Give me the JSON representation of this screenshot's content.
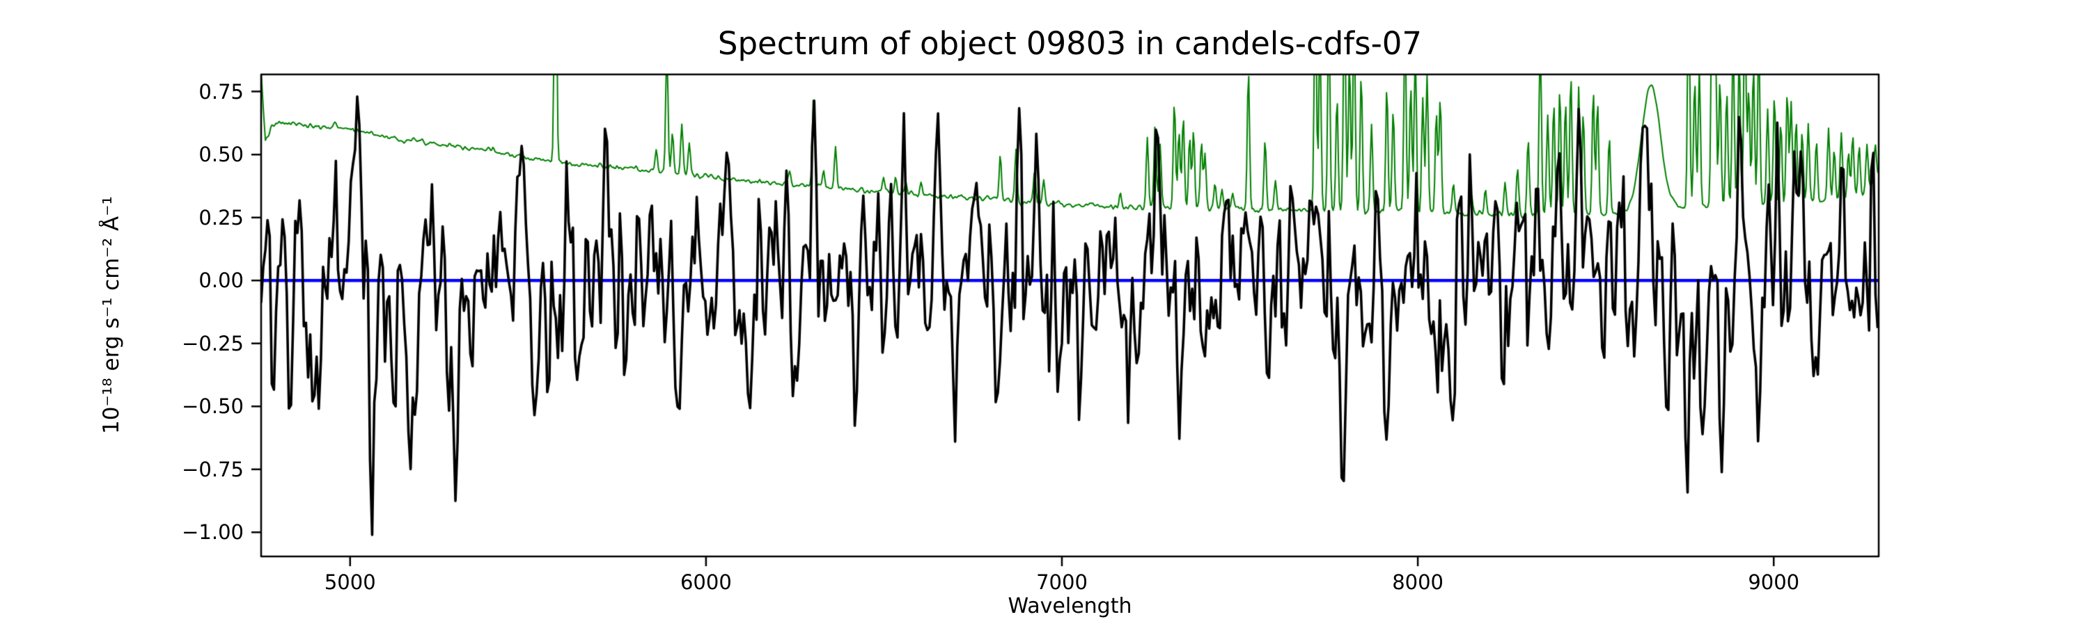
{
  "figure": {
    "background": "#ffffff"
  },
  "chart_data": {
    "type": "line",
    "title": "Spectrum of object 09803 in candels-cdfs-07",
    "xlabel": "Wavelength",
    "ylabel": "10⁻¹⁸ erg s⁻¹ cm⁻² Å⁻¹",
    "xlim": [
      4750,
      9295
    ],
    "ylim": [
      -1.096,
      0.818
    ],
    "xticks": [
      5000,
      6000,
      7000,
      8000,
      9000
    ],
    "xtick_labels": [
      "5000",
      "6000",
      "7000",
      "8000",
      "9000"
    ],
    "yticks": [
      0.75,
      0.5,
      0.25,
      0,
      -0.25,
      -0.5,
      -0.75,
      -1
    ],
    "ytick_labels": [
      "0.75",
      "0.50",
      "0.25",
      "0.00",
      "−0.25",
      "−0.50",
      "−0.75",
      "−1.00"
    ],
    "grid": false,
    "legend": "none",
    "axis_color": "#000000",
    "spine_width": 2.5,
    "tick_length": 14,
    "series": [
      {
        "name": "zero-line",
        "role": "reference line at zero flux",
        "color": "#0000ff",
        "linewidth": 4.5,
        "y": 0
      },
      {
        "name": "sky-noise",
        "role": "noise / sky spectrum",
        "color": "#008000",
        "linewidth": 2,
        "sample_step": 3,
        "wiggle_seed": 7,
        "wiggle_sigma": 0.008,
        "sky_line_width": 3.2,
        "baseline_nodes": [
          [
            4750,
            0.82
          ],
          [
            4762,
            0.555
          ],
          [
            4778,
            0.605
          ],
          [
            4800,
            0.625
          ],
          [
            4860,
            0.62
          ],
          [
            4900,
            0.605
          ],
          [
            4960,
            0.615
          ],
          [
            5000,
            0.6
          ],
          [
            5060,
            0.585
          ],
          [
            5120,
            0.565
          ],
          [
            5180,
            0.555
          ],
          [
            5240,
            0.545
          ],
          [
            5300,
            0.535
          ],
          [
            5380,
            0.52
          ],
          [
            5460,
            0.5
          ],
          [
            5540,
            0.478
          ],
          [
            5600,
            0.465
          ],
          [
            5660,
            0.458
          ],
          [
            5720,
            0.452
          ],
          [
            5780,
            0.443
          ],
          [
            5840,
            0.435
          ],
          [
            5900,
            0.428
          ],
          [
            5960,
            0.418
          ],
          [
            6020,
            0.41
          ],
          [
            6080,
            0.4
          ],
          [
            6140,
            0.395
          ],
          [
            6200,
            0.388
          ],
          [
            6260,
            0.38
          ],
          [
            6320,
            0.372
          ],
          [
            6380,
            0.365
          ],
          [
            6440,
            0.358
          ],
          [
            6500,
            0.352
          ],
          [
            6560,
            0.345
          ],
          [
            6620,
            0.338
          ],
          [
            6680,
            0.332
          ],
          [
            6740,
            0.328
          ],
          [
            6800,
            0.323
          ],
          [
            6860,
            0.318
          ],
          [
            6920,
            0.312
          ],
          [
            6980,
            0.305
          ],
          [
            7040,
            0.3
          ],
          [
            7100,
            0.296
          ],
          [
            7160,
            0.292
          ],
          [
            7220,
            0.29
          ],
          [
            7300,
            0.288
          ],
          [
            7400,
            0.285
          ],
          [
            7500,
            0.282
          ],
          [
            7600,
            0.28
          ],
          [
            7700,
            0.278
          ],
          [
            7800,
            0.276
          ],
          [
            7900,
            0.274
          ],
          [
            8000,
            0.272
          ],
          [
            8100,
            0.268
          ],
          [
            8200,
            0.265
          ],
          [
            8300,
            0.263
          ],
          [
            8400,
            0.262
          ],
          [
            8500,
            0.263
          ],
          [
            8580,
            0.268
          ],
          [
            8700,
            0.285
          ],
          [
            8800,
            0.295
          ],
          [
            8900,
            0.3
          ],
          [
            9000,
            0.305
          ],
          [
            9100,
            0.312
          ],
          [
            9150,
            0.318
          ],
          [
            9200,
            0.325
          ],
          [
            9250,
            0.34
          ],
          [
            9280,
            0.38
          ],
          [
            9295,
            0.42
          ]
        ],
        "sky_lines": [
          [
            5577,
            1.2
          ],
          [
            5860,
            0.08
          ],
          [
            5890,
            0.5
          ],
          [
            5906,
            0.16
          ],
          [
            5932,
            0.2
          ],
          [
            5953,
            0.13
          ],
          [
            6235,
            0.05
          ],
          [
            6302,
            0.36
          ],
          [
            6330,
            0.06
          ],
          [
            6364,
            0.16
          ],
          [
            6499,
            0.05
          ],
          [
            6533,
            0.06
          ],
          [
            6562,
            0.05
          ],
          [
            6604,
            0.04
          ],
          [
            6827,
            0.17
          ],
          [
            6871,
            0.21
          ],
          [
            6923,
            0.12
          ],
          [
            6949,
            0.09
          ],
          [
            7164,
            0.05
          ],
          [
            7240,
            0.28
          ],
          [
            7262,
            0.33
          ],
          [
            7276,
            0.25
          ],
          [
            7316,
            0.42
          ],
          [
            7329,
            0.3
          ],
          [
            7341,
            0.36
          ],
          [
            7359,
            0.28
          ],
          [
            7370,
            0.32
          ],
          [
            7392,
            0.26
          ],
          [
            7402,
            0.22
          ],
          [
            7430,
            0.1
          ],
          [
            7450,
            0.08
          ],
          [
            7480,
            0.06
          ],
          [
            7524,
            0.55
          ],
          [
            7571,
            0.28
          ],
          [
            7600,
            0.12
          ],
          [
            7712,
            0.95
          ],
          [
            7725,
            0.7
          ],
          [
            7750,
            0.8
          ],
          [
            7773,
            0.45
          ],
          [
            7794,
            0.9
          ],
          [
            7808,
            0.6
          ],
          [
            7821,
            0.8
          ],
          [
            7841,
            0.55
          ],
          [
            7870,
            0.35
          ],
          [
            7913,
            0.5
          ],
          [
            7931,
            0.4
          ],
          [
            7964,
            0.75
          ],
          [
            7980,
            0.5
          ],
          [
            7993,
            0.65
          ],
          [
            8014,
            0.45
          ],
          [
            8026,
            0.55
          ],
          [
            8052,
            0.4
          ],
          [
            8063,
            0.45
          ],
          [
            8100,
            0.12
          ],
          [
            8150,
            0.08
          ],
          [
            8190,
            0.1
          ],
          [
            8245,
            0.12
          ],
          [
            8280,
            0.18
          ],
          [
            8310,
            0.3
          ],
          [
            8344,
            0.7
          ],
          [
            8365,
            0.4
          ],
          [
            8382,
            0.45
          ],
          [
            8399,
            0.5
          ],
          [
            8415,
            0.45
          ],
          [
            8430,
            0.55
          ],
          [
            8452,
            0.5
          ],
          [
            8465,
            0.4
          ],
          [
            8493,
            0.5
          ],
          [
            8505,
            0.45
          ],
          [
            8538,
            0.3
          ],
          [
            8761,
            0.9
          ],
          [
            8778,
            0.5
          ],
          [
            8791,
            0.55
          ],
          [
            8827,
            0.9
          ],
          [
            8836,
            0.7
          ],
          [
            8849,
            0.5
          ],
          [
            8868,
            0.45
          ],
          [
            8886,
            0.65
          ],
          [
            8903,
            0.6
          ],
          [
            8919,
            0.85
          ],
          [
            8930,
            0.45
          ],
          [
            8943,
            0.55
          ],
          [
            8958,
            0.65
          ],
          [
            8983,
            0.38
          ],
          [
            9002,
            0.42
          ],
          [
            9020,
            0.32
          ],
          [
            9038,
            0.45
          ],
          [
            9049,
            0.4
          ],
          [
            9063,
            0.32
          ],
          [
            9080,
            0.28
          ],
          [
            9097,
            0.32
          ],
          [
            9120,
            0.22
          ],
          [
            9154,
            0.28
          ],
          [
            9170,
            0.2
          ],
          [
            9190,
            0.26
          ],
          [
            9210,
            0.18
          ],
          [
            9222,
            0.24
          ],
          [
            9240,
            0.2
          ],
          [
            9262,
            0.18
          ],
          [
            9285,
            0.15
          ]
        ],
        "broad_bumps": [
          [
            8655,
            0.5,
            26
          ]
        ]
      },
      {
        "name": "flux",
        "role": "object spectrum (noisy)",
        "color": "#000000",
        "linewidth": 3.6,
        "sample_step": 6,
        "noise_seed": 20,
        "feature_width": 7,
        "clamp": [
          -1.01,
          0.73
        ],
        "noise_sigma_nodes": [
          [
            4750,
            0.2
          ],
          [
            5400,
            0.19
          ],
          [
            5800,
            0.175
          ],
          [
            6400,
            0.165
          ],
          [
            7000,
            0.155
          ],
          [
            7500,
            0.165
          ],
          [
            7700,
            0.185
          ],
          [
            8300,
            0.19
          ],
          [
            8800,
            0.2
          ],
          [
            9295,
            0.2
          ]
        ],
        "features": [
          [
            4787,
            -0.42
          ],
          [
            4800,
            0.34
          ],
          [
            4835,
            -0.38
          ],
          [
            4862,
            0.44
          ],
          [
            4875,
            -0.55
          ],
          [
            4910,
            -0.4
          ],
          [
            4960,
            0.5
          ],
          [
            5020,
            0.56
          ],
          [
            5065,
            -0.78
          ],
          [
            5120,
            -0.45
          ],
          [
            5170,
            -0.72
          ],
          [
            5230,
            0.35
          ],
          [
            5295,
            -0.8
          ],
          [
            5340,
            -0.6
          ],
          [
            5420,
            0.3
          ],
          [
            5480,
            0.55
          ],
          [
            5515,
            -0.48
          ],
          [
            5560,
            -0.42
          ],
          [
            5640,
            -0.35
          ],
          [
            5720,
            0.63
          ],
          [
            5775,
            -0.4
          ],
          [
            5850,
            0.3
          ],
          [
            5920,
            -0.35
          ],
          [
            5980,
            0.32
          ],
          [
            6060,
            0.34
          ],
          [
            6120,
            -0.38
          ],
          [
            6190,
            0.3
          ],
          [
            6245,
            -0.52
          ],
          [
            6300,
            0.42
          ],
          [
            6360,
            -0.3
          ],
          [
            6420,
            -0.45
          ],
          [
            6480,
            0.3
          ],
          [
            6560,
            0.35
          ],
          [
            6650,
            0.47
          ],
          [
            6700,
            -0.55
          ],
          [
            6760,
            0.3
          ],
          [
            6820,
            -0.3
          ],
          [
            6880,
            0.5
          ],
          [
            6930,
            0.4
          ],
          [
            6990,
            -0.35
          ],
          [
            7050,
            -0.48
          ],
          [
            7120,
            0.28
          ],
          [
            7190,
            -0.3
          ],
          [
            7270,
            0.58
          ],
          [
            7330,
            -0.35
          ],
          [
            7400,
            -0.3
          ],
          [
            7460,
            0.3
          ],
          [
            7520,
            0.55
          ],
          [
            7580,
            -0.32
          ],
          [
            7650,
            0.35
          ],
          [
            7710,
            0.3
          ],
          [
            7790,
            -0.62
          ],
          [
            7850,
            -0.35
          ],
          [
            7916,
            -0.6
          ],
          [
            7990,
            0.35
          ],
          [
            8050,
            -0.45
          ],
          [
            8090,
            -0.5
          ],
          [
            8150,
            0.35
          ],
          [
            8220,
            0.3
          ],
          [
            8280,
            0.42
          ],
          [
            8330,
            0.48
          ],
          [
            8390,
            0.35
          ],
          [
            8450,
            0.48
          ],
          [
            8520,
            -0.35
          ],
          [
            8570,
            0.35
          ],
          [
            8640,
            0.65
          ],
          [
            8700,
            -0.45
          ],
          [
            8757,
            -0.95
          ],
          [
            8800,
            -0.55
          ],
          [
            8858,
            -0.92
          ],
          [
            8915,
            0.4
          ],
          [
            8960,
            -0.55
          ],
          [
            9010,
            0.35
          ],
          [
            9060,
            0.45
          ],
          [
            9120,
            -0.35
          ],
          [
            9180,
            0.35
          ],
          [
            9240,
            -0.3
          ],
          [
            9280,
            0.3
          ]
        ]
      }
    ]
  }
}
